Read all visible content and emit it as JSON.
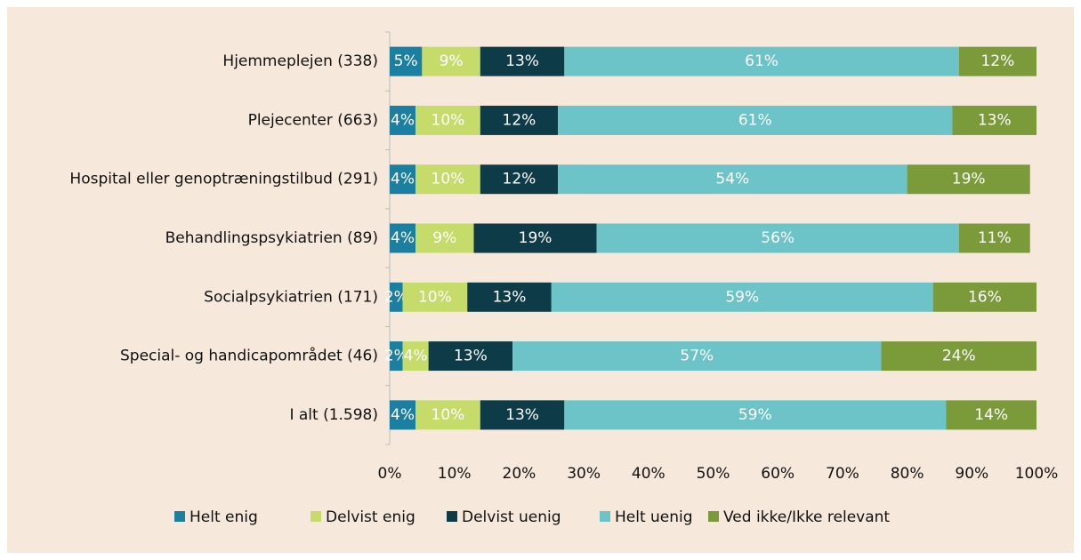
{
  "chart_data": {
    "type": "stacked_bar_horizontal",
    "categories": [
      "Hjemmeplejen (338)",
      "Plejecenter (663)",
      "Hospital eller genoptræningstilbud (291)",
      "Behandlingspsykiatrien (89)",
      "Socialpsykiatrien (171)",
      "Special- og handicapområdet (46)",
      "I alt (1.598)"
    ],
    "series": [
      {
        "name": "Helt enig",
        "color": "#1a7fa0",
        "values": [
          5,
          4,
          4,
          4,
          2,
          2,
          4
        ],
        "value_labels": [
          "5%",
          "4%",
          "4%",
          "4%",
          "2%",
          "2%",
          "4%"
        ]
      },
      {
        "name": "Delvist enig",
        "color": "#c5dc6a",
        "values": [
          9,
          10,
          10,
          9,
          10,
          4,
          10
        ],
        "value_labels": [
          "9%",
          "10%",
          "10%",
          "9%",
          "10%",
          "4%",
          "10%"
        ]
      },
      {
        "name": "Delvist uenig",
        "color": "#0e3b48",
        "values": [
          13,
          12,
          12,
          19,
          13,
          13,
          13
        ],
        "value_labels": [
          "13%",
          "12%",
          "12%",
          "19%",
          "13%",
          "13%",
          "13%"
        ]
      },
      {
        "name": "Helt uenig",
        "color": "#6cc3c8",
        "values": [
          61,
          61,
          54,
          56,
          59,
          57,
          59
        ],
        "value_labels": [
          "61%",
          "61%",
          "54%",
          "56%",
          "59%",
          "57%",
          "59%"
        ]
      },
      {
        "name": "Ved ikke/Ikke relevant",
        "color": "#7b9b3b",
        "values": [
          12,
          13,
          19,
          11,
          16,
          24,
          14
        ],
        "value_labels": [
          "12%",
          "13%",
          "19%",
          "11%",
          "16%",
          "24%",
          "14%"
        ]
      }
    ],
    "xlim": [
      0,
      100
    ],
    "xticks": [
      {
        "value": 0,
        "label": "0%"
      },
      {
        "value": 10,
        "label": "10%"
      },
      {
        "value": 20,
        "label": "20%"
      },
      {
        "value": 30,
        "label": "30%"
      },
      {
        "value": 40,
        "label": "40%"
      },
      {
        "value": 50,
        "label": "50%"
      },
      {
        "value": 60,
        "label": "60%"
      },
      {
        "value": 70,
        "label": "70%"
      },
      {
        "value": 80,
        "label": "80%"
      },
      {
        "value": 90,
        "label": "90%"
      },
      {
        "value": 100,
        "label": "100%"
      }
    ],
    "legend": "bottom"
  }
}
